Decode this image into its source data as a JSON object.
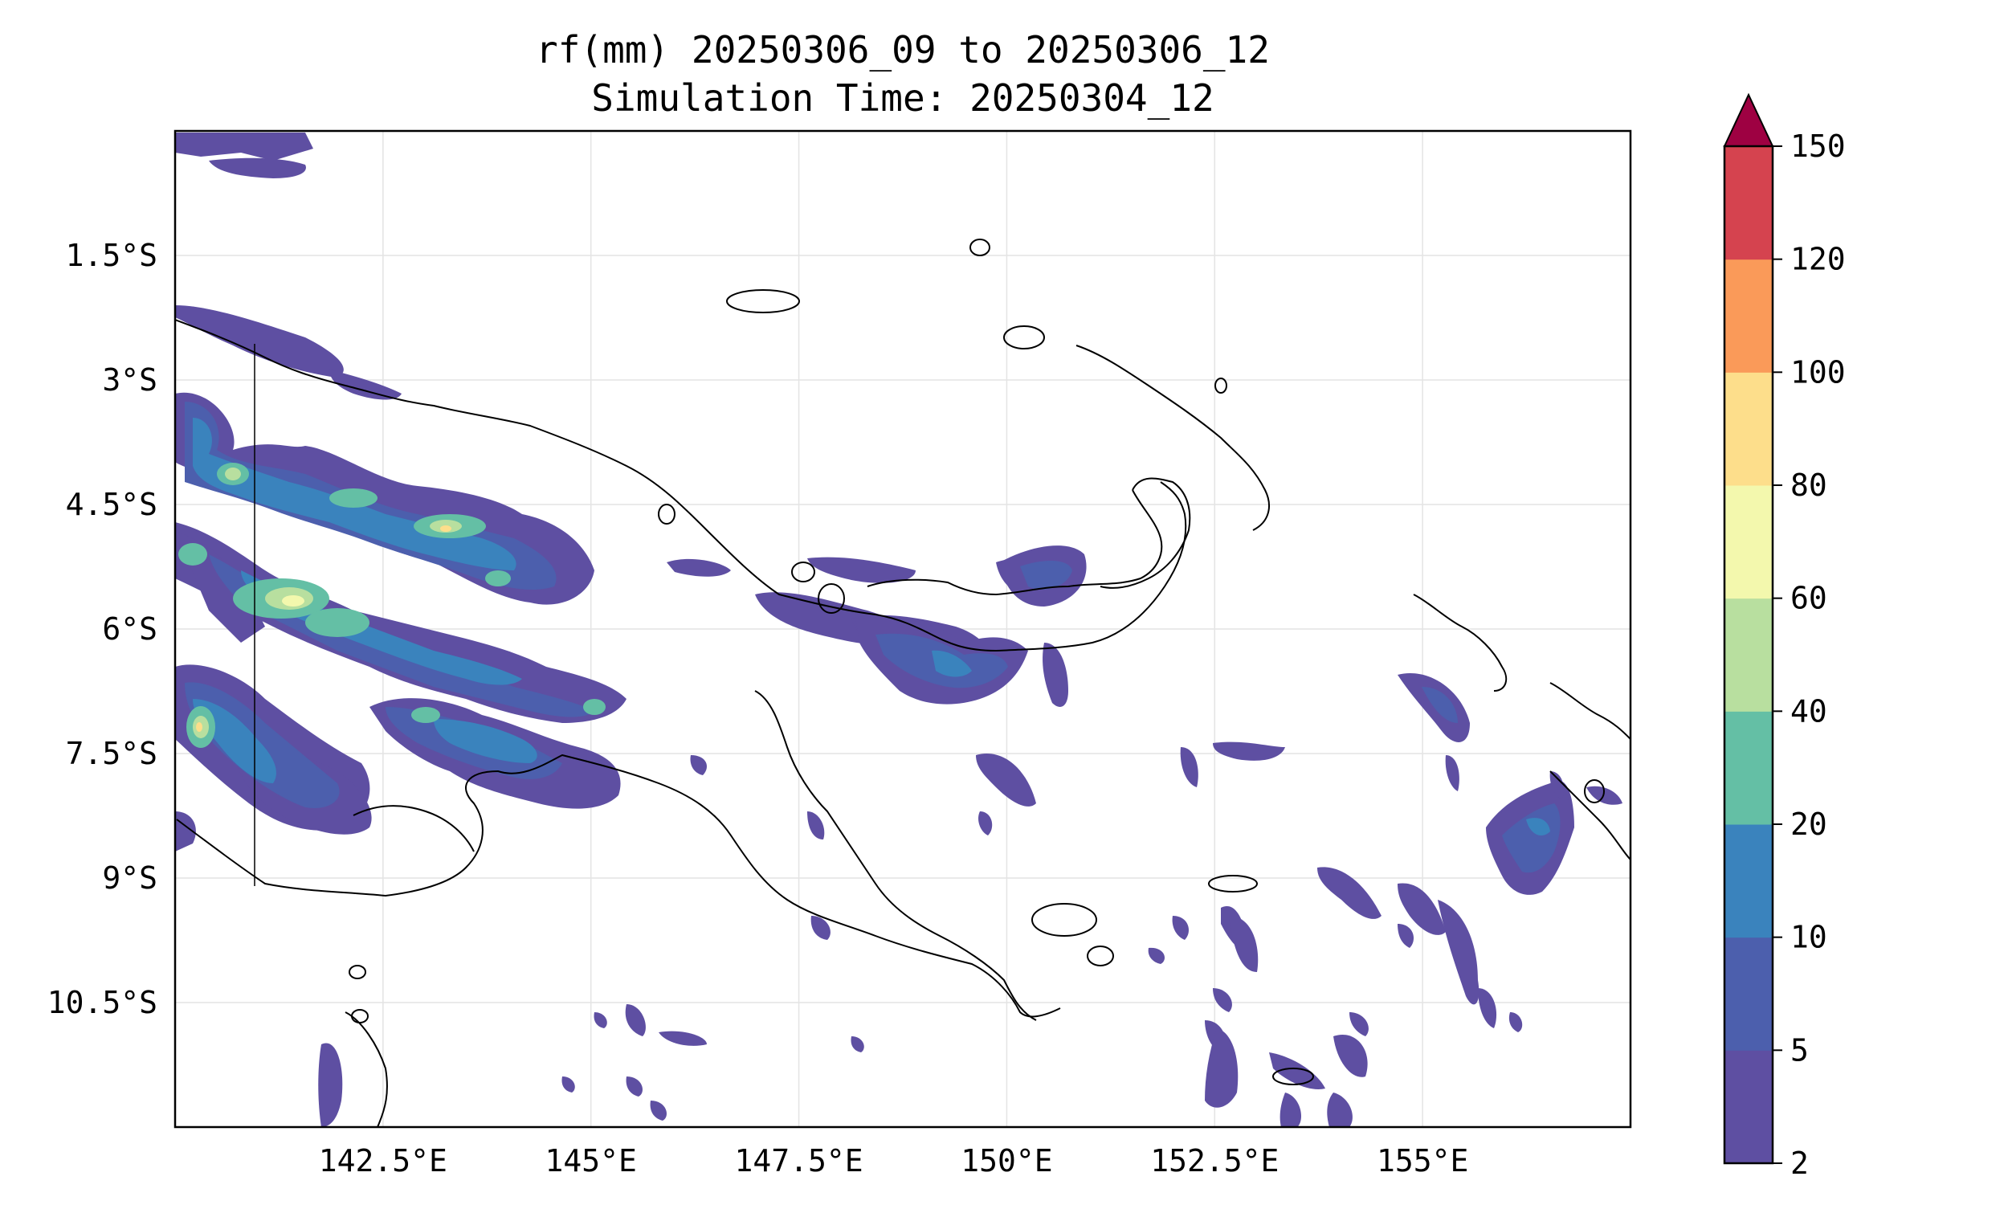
{
  "title": {
    "line1": "rf(mm) 20250306_09 to 20250306_12",
    "line2": "Simulation Time: 20250304_12"
  },
  "map": {
    "lon_range": [
      140.0,
      157.5
    ],
    "lat_range": [
      -12.0,
      0.0
    ],
    "lon_ticks": [
      "142.5°E",
      "145°E",
      "147.5°E",
      "150°E",
      "152.5°E",
      "155°E"
    ],
    "lat_ticks": [
      "1.5°S",
      "3°S",
      "4.5°S",
      "6°S",
      "7.5°S",
      "9°S",
      "10.5°S"
    ],
    "gridlines": true,
    "coastline_color": "#000000"
  },
  "colorbar": {
    "levels": [
      "2",
      "5",
      "10",
      "20",
      "40",
      "60",
      "80",
      "100",
      "120",
      "150"
    ],
    "colors": [
      "#5e4fa2",
      "#4c5fad",
      "#3a83bd",
      "#64bfa5",
      "#b8df9f",
      "#f3f8ad",
      "#fdde8b",
      "#fa9a59",
      "#d5434f"
    ],
    "extend_color": "#9e0142",
    "extend": "max"
  },
  "chart_data": {
    "type": "heatmap",
    "variable": "rf(mm)",
    "valid_period": "20250306_09 to 20250306_12",
    "simulation_time": "20250304_12",
    "x_range": [
      140.0,
      157.5
    ],
    "y_range": [
      -12.0,
      0.0
    ],
    "levels": [
      2,
      5,
      10,
      20,
      40,
      60,
      80,
      100,
      120,
      150
    ],
    "rain_cells": [
      {
        "lon": 141.5,
        "lat": -0.3,
        "level": 0
      },
      {
        "lon": 141.3,
        "lat": -5.3,
        "level": 2
      },
      {
        "lon": 141.6,
        "lat": -6.3,
        "level": 5
      },
      {
        "lon": 141.0,
        "lat": -7.3,
        "level": 4
      },
      {
        "lon": 143.0,
        "lat": -4.7,
        "level": 6
      },
      {
        "lon": 142.2,
        "lat": -5.6,
        "level": 5
      },
      {
        "lon": 143.5,
        "lat": -6.8,
        "level": 3
      },
      {
        "lon": 148.5,
        "lat": -6.6,
        "level": 2
      },
      {
        "lon": 149.5,
        "lat": -6.8,
        "level": 1
      },
      {
        "lon": 150.5,
        "lat": -5.3,
        "level": 1
      },
      {
        "lon": 156.6,
        "lat": -8.7,
        "level": 2
      }
    ]
  }
}
